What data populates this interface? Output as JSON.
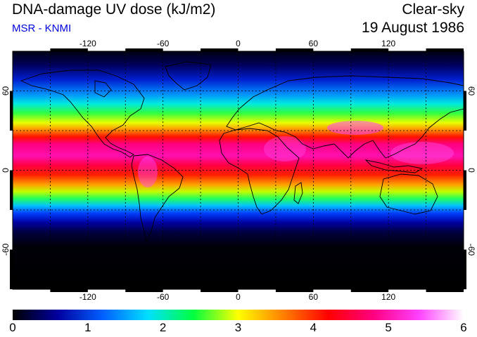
{
  "header": {
    "title": "DNA-damage UV dose (kJ/m2)",
    "subtitle": "MSR - KNMI",
    "mode": "Clear-sky",
    "date": "19 August 1986"
  },
  "map": {
    "lon_ticks": [
      "-120",
      "-60",
      "0",
      "60",
      "120"
    ],
    "lat_ticks": [
      "60",
      "0",
      "-60"
    ],
    "lon_range": [
      -180,
      180
    ],
    "lat_range": [
      -90,
      90
    ],
    "grid": "dashed every 30 degrees"
  },
  "colorbar": {
    "labels": [
      "0",
      "1",
      "2",
      "3",
      "4",
      "5",
      "6"
    ],
    "range": [
      0,
      6
    ],
    "colors": [
      "#000000",
      "#0000a0",
      "#0060ff",
      "#00e0ff",
      "#00ff40",
      "#ffff00",
      "#ff8000",
      "#ff0000",
      "#ff0080",
      "#ff40ff",
      "#ffffff"
    ]
  },
  "colors": {
    "subtitle": "#0000dd",
    "gridline": "#000000"
  }
}
